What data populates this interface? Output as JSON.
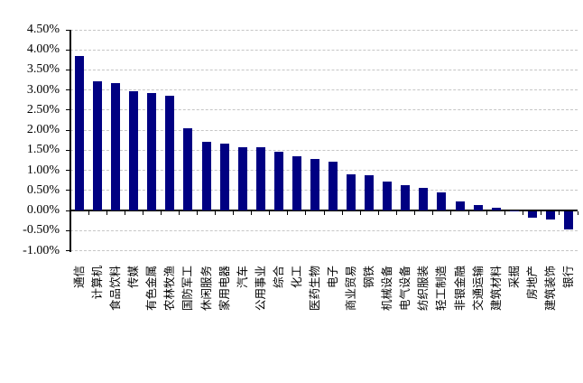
{
  "chart_data": {
    "type": "bar",
    "title": "",
    "xlabel": "",
    "ylabel": "",
    "unit": "%",
    "categories": [
      "通信",
      "计算机",
      "食品饮料",
      "传媒",
      "有色金属",
      "农林牧渔",
      "国防军工",
      "休闲服务",
      "家用电器",
      "汽车",
      "公用事业",
      "综合",
      "化工",
      "医药生物",
      "电子",
      "商业贸易",
      "钢铁",
      "机械设备",
      "电气设备",
      "纺织服装",
      "轻工制造",
      "非银金融",
      "交通运输",
      "建筑材料",
      "采掘",
      "房地产",
      "建筑装饰",
      "银行"
    ],
    "values": [
      3.85,
      3.21,
      3.18,
      2.96,
      2.93,
      2.86,
      2.05,
      1.71,
      1.66,
      1.58,
      1.57,
      1.46,
      1.34,
      1.29,
      1.21,
      0.9,
      0.88,
      0.71,
      0.64,
      0.57,
      0.44,
      0.23,
      0.14,
      0.07,
      0.01,
      -0.15,
      -0.2,
      -0.45
    ],
    "ylim": [
      -1.0,
      4.5
    ],
    "ytick_step": 0.5,
    "ytick_labels": [
      "4.50%",
      "4.00%",
      "3.50%",
      "3.00%",
      "2.50%",
      "2.00%",
      "1.50%",
      "1.00%",
      "0.50%",
      "0.00%",
      "-0.50%",
      "-1.00%"
    ],
    "bar_color": "#000082",
    "grid": true,
    "gridline_color": "#c6c6c6",
    "axis_color": "#000000",
    "legend": "none"
  }
}
